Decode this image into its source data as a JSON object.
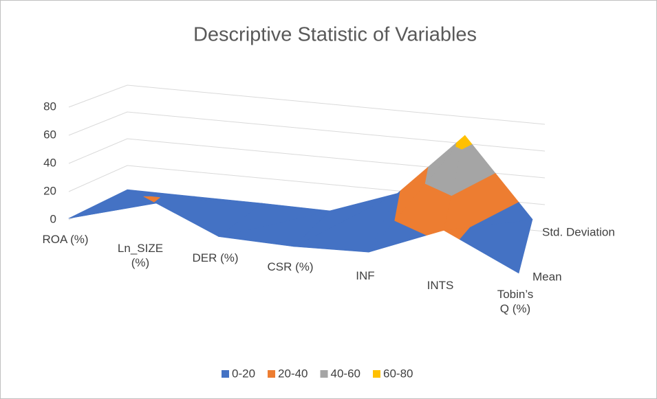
{
  "chart_data": {
    "type": "surface",
    "title": "Descriptive Statistic of Variables",
    "categories": [
      "ROA (%)",
      "Ln_SIZE (%)",
      "DER (%)",
      "CSR (%)",
      "INF",
      "INTS",
      "Tobin’s Q (%)"
    ],
    "series": [
      {
        "name": "Mean",
        "values": [
          1,
          23,
          1,
          0.5,
          3,
          25,
          1
        ]
      },
      {
        "name": "Std. Deviation",
        "values": [
          2,
          1.5,
          1.2,
          0.3,
          18,
          66,
          8
        ]
      }
    ],
    "ylim": [
      0,
      80
    ],
    "yticks": [
      0,
      20,
      40,
      60,
      80
    ],
    "grid": true,
    "bands": [
      {
        "name": "0-20",
        "color": "#4472c4",
        "range": [
          0,
          20
        ]
      },
      {
        "name": "20-40",
        "color": "#ed7d31",
        "range": [
          20,
          40
        ]
      },
      {
        "name": "40-60",
        "color": "#a5a5a5",
        "range": [
          40,
          60
        ]
      },
      {
        "name": "60-80",
        "color": "#ffc000",
        "range": [
          60,
          80
        ]
      }
    ]
  }
}
